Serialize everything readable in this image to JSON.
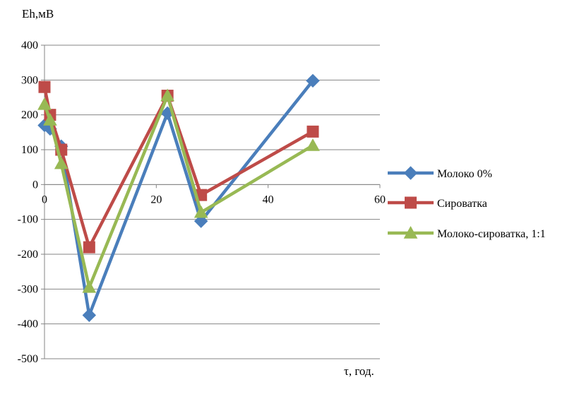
{
  "chart_data": {
    "type": "line",
    "ylabel": "Eh,мВ",
    "xlabel": "τ, год.",
    "xlim": [
      0,
      60
    ],
    "ylim": [
      -500,
      400
    ],
    "x_ticks": [
      0,
      20,
      40,
      60
    ],
    "y_ticks": [
      400,
      300,
      200,
      100,
      0,
      -100,
      -200,
      -300,
      -400,
      -500
    ],
    "grid": "horizontal",
    "legend_position": "right",
    "series": [
      {
        "name": "Молоко 0%",
        "color": "#4A7EBB",
        "marker": "diamond",
        "x": [
          0,
          1,
          3,
          8,
          22,
          28,
          48
        ],
        "y": [
          170,
          160,
          110,
          -375,
          205,
          -105,
          298
        ]
      },
      {
        "name": "Сироватка",
        "color": "#BE4B48",
        "marker": "square",
        "x": [
          0,
          1,
          3,
          8,
          22,
          28,
          48
        ],
        "y": [
          280,
          200,
          100,
          -180,
          255,
          -30,
          152
        ]
      },
      {
        "name": "Молоко-сироватка, 1:1",
        "color": "#98B954",
        "marker": "triangle",
        "x": [
          0,
          1,
          3,
          8,
          22,
          28,
          48
        ],
        "y": [
          230,
          185,
          60,
          -295,
          255,
          -80,
          112
        ]
      }
    ]
  }
}
